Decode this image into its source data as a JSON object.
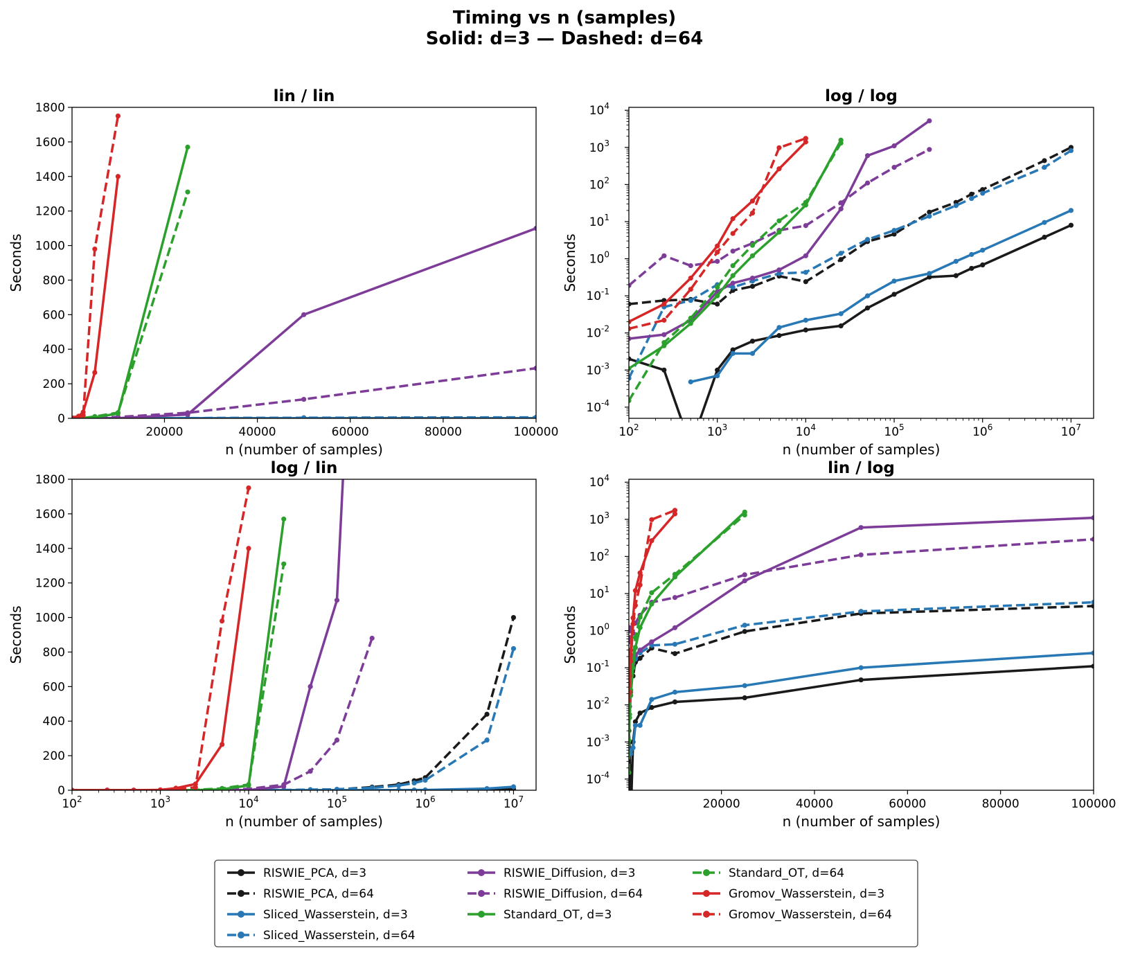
{
  "figure": {
    "title_line1": "Timing vs n (samples)",
    "title_line2": "Solid: d=3 — Dashed: d=64"
  },
  "colors": {
    "RISWIE_PCA": "#1a1a1a",
    "Sliced_Wasserstein": "#2878b5",
    "RISWIE_Diffusion": "#7d3c98",
    "Standard_OT": "#2ca02c",
    "Gromov_Wasserstein": "#d62728"
  },
  "chart_data": [
    {
      "type": "line",
      "title": "lin / lin",
      "xscale": "linear",
      "yscale": "linear",
      "xlabel": "n (number of samples)",
      "ylabel": "Seconds",
      "xlim": [
        100,
        100000
      ],
      "ylim": [
        0,
        1800
      ],
      "xticks": [
        20000,
        40000,
        60000,
        80000,
        100000
      ],
      "yticks": [
        0,
        200,
        400,
        600,
        800,
        1000,
        1200,
        1400,
        1600,
        1800
      ]
    },
    {
      "type": "line",
      "title": "log / log",
      "xscale": "log",
      "yscale": "log",
      "xlabel": "n (number of samples)",
      "ylabel": "Seconds",
      "xlim": [
        100,
        18000000
      ],
      "ylim": [
        5e-05,
        12000
      ],
      "xticks": [
        100,
        1000,
        10000,
        100000,
        1000000,
        10000000
      ],
      "yticks": [
        0.0001,
        0.001,
        0.01,
        0.1,
        1,
        10,
        100,
        1000,
        10000
      ]
    },
    {
      "type": "line",
      "title": "log / lin",
      "xscale": "log",
      "yscale": "linear",
      "xlabel": "n (number of samples)",
      "ylabel": "Seconds",
      "xlim": [
        100,
        18000000
      ],
      "ylim": [
        0,
        1800
      ],
      "xticks": [
        100,
        1000,
        10000,
        100000,
        1000000,
        10000000
      ],
      "yticks": [
        0,
        200,
        400,
        600,
        800,
        1000,
        1200,
        1400,
        1600,
        1800
      ]
    },
    {
      "type": "line",
      "title": "lin / log",
      "xscale": "linear",
      "yscale": "log",
      "xlabel": "n (number of samples)",
      "ylabel": "Seconds",
      "xlim": [
        100,
        100000
      ],
      "ylim": [
        5e-05,
        12000
      ],
      "xticks": [
        20000,
        40000,
        60000,
        80000,
        100000
      ],
      "yticks": [
        0.0001,
        0.001,
        0.01,
        0.1,
        1,
        10,
        100,
        1000,
        10000
      ]
    }
  ],
  "series": [
    {
      "name": "RISWIE_PCA, d=3",
      "method": "RISWIE_PCA",
      "dashed": false,
      "x": [
        100,
        250,
        500,
        1000,
        1500,
        2500,
        5000,
        10000,
        25000,
        50000,
        100000,
        250000,
        500000,
        750000,
        1000000,
        5000000,
        10000000
      ],
      "y": [
        0.002,
        0.001,
        0,
        0.001,
        0.0035,
        0.006,
        0.0085,
        0.012,
        0.0155,
        0.047,
        0.11,
        0.32,
        0.35,
        0.55,
        0.68,
        3.8,
        8
      ]
    },
    {
      "name": "RISWIE_PCA, d=64",
      "method": "RISWIE_PCA",
      "dashed": true,
      "x": [
        100,
        250,
        500,
        1000,
        1500,
        2500,
        5000,
        10000,
        25000,
        50000,
        100000,
        250000,
        500000,
        750000,
        1000000,
        5000000,
        10000000
      ],
      "y": [
        0.06,
        0.075,
        0.08,
        0.06,
        0.14,
        0.18,
        0.34,
        0.24,
        0.95,
        2.9,
        4.6,
        18,
        33,
        55,
        73,
        440,
        1000
      ]
    },
    {
      "name": "Sliced_Wasserstein, d=3",
      "method": "Sliced_Wasserstein",
      "dashed": false,
      "x": [
        500,
        1000,
        1500,
        2500,
        5000,
        10000,
        25000,
        50000,
        100000,
        250000,
        500000,
        750000,
        1000000,
        5000000,
        10000000
      ],
      "y": [
        0.00048,
        0.0007,
        0.0028,
        0.0028,
        0.014,
        0.022,
        0.033,
        0.1,
        0.25,
        0.4,
        0.85,
        1.3,
        1.7,
        9.5,
        20
      ]
    },
    {
      "name": "Sliced_Wasserstein, d=64",
      "method": "Sliced_Wasserstein",
      "dashed": true,
      "x": [
        100,
        250,
        500,
        1000,
        1500,
        2500,
        5000,
        10000,
        25000,
        50000,
        100000,
        250000,
        500000,
        750000,
        1000000,
        5000000,
        10000000
      ],
      "y": [
        0.0006,
        0.05,
        0.075,
        0.2,
        0.17,
        0.25,
        0.4,
        0.43,
        1.4,
        3.3,
        5.8,
        14,
        27,
        42,
        58,
        290,
        820
      ]
    },
    {
      "name": "RISWIE_Diffusion, d=3",
      "method": "RISWIE_Diffusion",
      "dashed": false,
      "x": [
        100,
        250,
        500,
        1000,
        1500,
        2500,
        5000,
        10000,
        25000,
        50000,
        100000,
        250000
      ],
      "y": [
        0.007,
        0.009,
        0.022,
        0.13,
        0.22,
        0.3,
        0.5,
        1.2,
        22,
        600,
        1100,
        5200
      ]
    },
    {
      "name": "RISWIE_Diffusion, d=64",
      "method": "RISWIE_Diffusion",
      "dashed": true,
      "x": [
        100,
        250,
        500,
        1000,
        1500,
        2500,
        5000,
        10000,
        25000,
        50000,
        100000,
        250000
      ],
      "y": [
        0.19,
        1.2,
        0.65,
        0.85,
        1.6,
        2.6,
        5.8,
        7.8,
        32,
        110,
        290,
        880
      ]
    },
    {
      "name": "Standard_OT, d=3",
      "method": "Standard_OT",
      "dashed": false,
      "x": [
        100,
        250,
        500,
        1000,
        1500,
        2500,
        5000,
        10000,
        25000
      ],
      "y": [
        0.0011,
        0.0045,
        0.018,
        0.1,
        0.35,
        1.2,
        5.2,
        28,
        1570
      ]
    },
    {
      "name": "Standard_OT, d=64",
      "method": "Standard_OT",
      "dashed": true,
      "x": [
        100,
        250,
        500,
        1000,
        1500,
        2500,
        5000,
        10000,
        25000
      ],
      "y": [
        0.00015,
        0.0055,
        0.025,
        0.17,
        0.65,
        2.3,
        10.5,
        33,
        1310
      ]
    },
    {
      "name": "Gromov_Wasserstein, d=3",
      "method": "Gromov_Wasserstein",
      "dashed": false,
      "x": [
        100,
        250,
        500,
        1000,
        1500,
        2500,
        5000,
        10000
      ],
      "y": [
        0.02,
        0.06,
        0.3,
        2.2,
        12,
        36,
        265,
        1400
      ]
    },
    {
      "name": "Gromov_Wasserstein, d=64",
      "method": "Gromov_Wasserstein",
      "dashed": true,
      "x": [
        100,
        250,
        500,
        1000,
        1500,
        2500,
        5000,
        10000
      ],
      "y": [
        0.013,
        0.022,
        0.15,
        1.5,
        4.8,
        17,
        980,
        1750
      ]
    }
  ],
  "legend_order": [
    0,
    1,
    2,
    3,
    4,
    5,
    6,
    7,
    8,
    9
  ]
}
